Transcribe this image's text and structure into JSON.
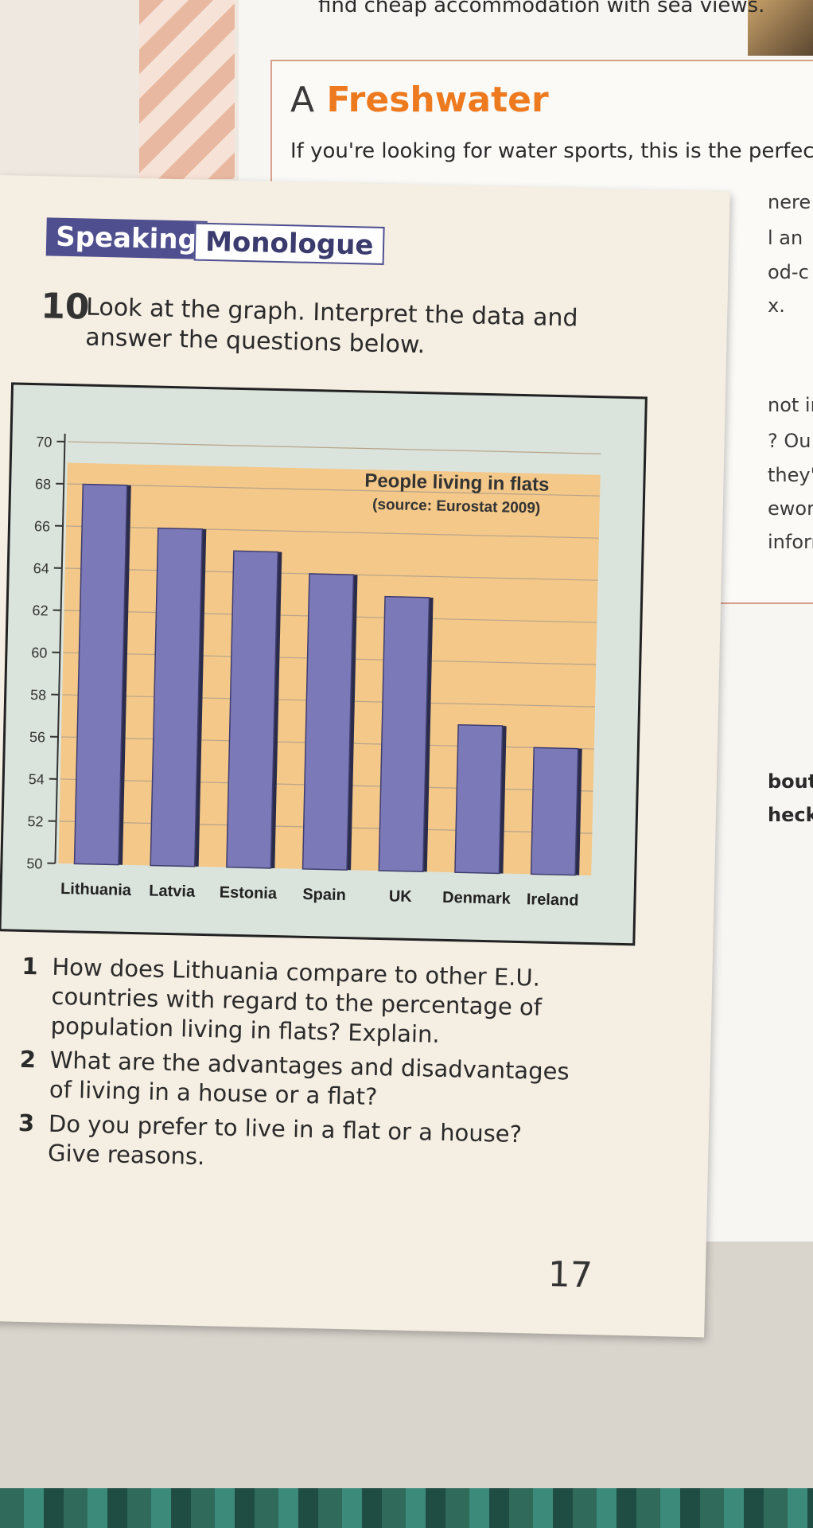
{
  "background": {
    "top_line": "find cheap accommodation with sea views.",
    "heading_prefix": "A",
    "heading": "Freshwater",
    "line2": "If you're looking for water sports, this is the perfect p",
    "fragments": [
      "nere",
      "l an",
      "od-c",
      "x.",
      "not in",
      "? Ou",
      "they'",
      "ework",
      "inform",
      "bout C",
      "heck t"
    ]
  },
  "header": {
    "speaking_label": "Speaking",
    "monologue_label": "Monologue"
  },
  "task": {
    "number": "10",
    "instruction": "Look at the graph. Interpret the data and answer the questions below."
  },
  "chart_data": {
    "type": "bar",
    "title": "People living in flats",
    "subtitle": "(source: Eurostat 2009)",
    "categories": [
      "Lithuania",
      "Latvia",
      "Estonia",
      "Spain",
      "UK",
      "Denmark",
      "Ireland"
    ],
    "values": [
      68,
      66,
      65,
      64,
      63,
      57,
      56
    ],
    "ylim": [
      50,
      70
    ],
    "yticks": [
      50,
      52,
      54,
      56,
      58,
      60,
      62,
      64,
      66,
      68,
      70
    ],
    "grid": true,
    "colors": {
      "bar": "#7b79b8",
      "plot_bg": "#f3c889",
      "frame_bg": "#dbe4dc"
    }
  },
  "questions": [
    {
      "number": "1",
      "text": "How does Lithuania compare to other E.U. countries with regard to the percentage of population living in flats? Explain."
    },
    {
      "number": "2",
      "text": "What are the advantages and disadvantages of living in a house or a flat?"
    },
    {
      "number": "3",
      "text": "Do you prefer to live in a flat or a house? Give reasons."
    }
  ],
  "page_number": "17"
}
